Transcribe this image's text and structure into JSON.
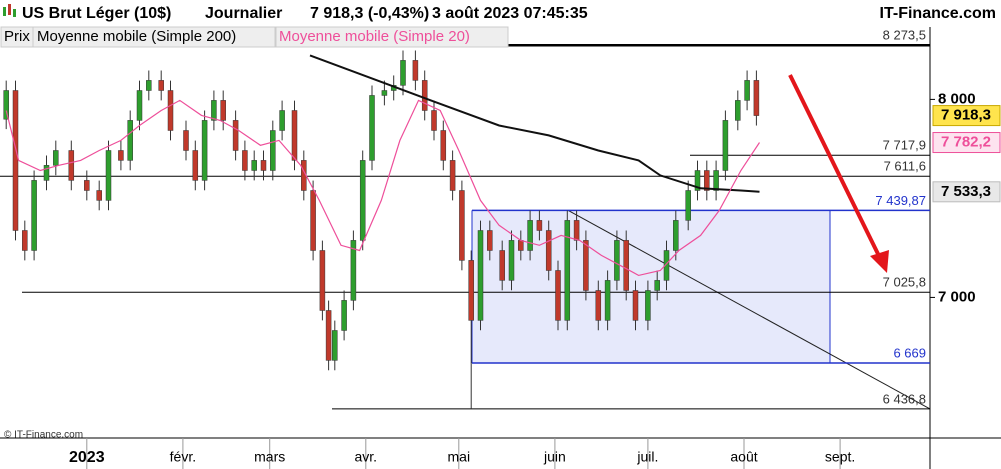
{
  "chart_data": {
    "type": "candlestick",
    "title": "US Brut Léger (10$)",
    "period": "Journalier",
    "quote": "7 918,3 (-0,43%)",
    "date": "3 août 2023 07:45:35",
    "source": "IT-Finance.com",
    "copyright": "© IT-Finance.com",
    "price_name": "Prix",
    "up_color": "#2e9e2e",
    "down_color": "#c0392b",
    "last_label": "7 918,3",
    "x": [
      -26,
      -23,
      -20,
      -17,
      -13,
      -10,
      -5,
      0,
      4,
      7,
      11,
      14,
      17,
      20,
      24,
      27,
      32,
      35,
      38,
      41,
      44,
      48,
      51,
      54,
      57,
      60,
      63,
      67,
      70,
      73,
      76,
      78,
      80,
      83,
      86,
      89,
      92,
      96,
      99,
      102,
      106,
      109,
      112,
      115,
      118,
      121,
      124,
      127,
      130,
      134,
      137,
      140,
      143,
      146,
      149,
      152,
      155,
      158,
      161,
      165,
      168,
      171,
      174,
      177,
      181,
      184,
      187,
      190,
      194,
      197,
      200,
      203,
      206,
      210,
      213,
      216
    ],
    "open": [
      7900,
      8045,
      7338,
      7237,
      7591,
      7667,
      7742,
      7591,
      7540,
      7490,
      7742,
      7692,
      7894,
      8045,
      8096,
      8045,
      7843,
      7742,
      7591,
      7894,
      7995,
      7894,
      7742,
      7641,
      7692,
      7641,
      7843,
      7944,
      7692,
      7540,
      7237,
      6934,
      6682,
      6833,
      6985,
      7288,
      7692,
      8020,
      8045,
      8071,
      8197,
      8096,
      7944,
      7843,
      7692,
      7540,
      7187,
      6884,
      7338,
      7237,
      7086,
      7288,
      7237,
      7389,
      7338,
      7136,
      6884,
      7389,
      7288,
      7035,
      6884,
      7086,
      7288,
      7035,
      6884,
      7035,
      7086,
      7237,
      7389,
      7540,
      7641,
      7540,
      7641,
      7894,
      7995,
      8096
    ],
    "high": [
      8095,
      8095,
      7388,
      7641,
      7717,
      7792,
      7792,
      7641,
      7590,
      7792,
      7792,
      7944,
      8095,
      8146,
      8146,
      8095,
      7893,
      7792,
      7944,
      8045,
      8045,
      7944,
      7792,
      7742,
      7742,
      7893,
      7994,
      7994,
      7742,
      7590,
      7287,
      6984,
      6883,
      7035,
      7338,
      7742,
      8070,
      8095,
      8121,
      8247,
      8247,
      8146,
      7994,
      7893,
      7742,
      7590,
      7237,
      7388,
      7388,
      7287,
      7338,
      7338,
      7439,
      7439,
      7388,
      7186,
      7439,
      7439,
      7338,
      7085,
      7136,
      7338,
      7338,
      7085,
      7085,
      7136,
      7287,
      7439,
      7590,
      7691,
      7691,
      7691,
      7944,
      8045,
      8146,
      8146
    ],
    "low": [
      7850,
      7288,
      7187,
      7187,
      7541,
      7617,
      7541,
      7490,
      7440,
      7440,
      7642,
      7642,
      7844,
      7995,
      7995,
      7793,
      7692,
      7541,
      7541,
      7844,
      7844,
      7692,
      7591,
      7591,
      7591,
      7591,
      7793,
      7642,
      7490,
      7187,
      6884,
      6632,
      6632,
      6783,
      6935,
      7238,
      7642,
      7970,
      7995,
      8021,
      8046,
      7894,
      7793,
      7642,
      7490,
      7137,
      6436.8,
      6834,
      7187,
      7036,
      7036,
      7187,
      7187,
      7288,
      7086,
      6834,
      6834,
      7238,
      6985,
      6834,
      6834,
      7036,
      6985,
      6834,
      6834,
      6985,
      7036,
      7187,
      7339,
      7490,
      7490,
      7490,
      7591,
      7844,
      7945,
      7868
    ],
    "close": [
      8045,
      7338,
      7237,
      7591,
      7667,
      7742,
      7591,
      7540,
      7490,
      7742,
      7692,
      7894,
      8045,
      8096,
      8045,
      7843,
      7742,
      7591,
      7894,
      7995,
      7894,
      7742,
      7641,
      7692,
      7641,
      7843,
      7944,
      7692,
      7540,
      7237,
      6934,
      6682,
      6833,
      6985,
      7288,
      7692,
      8020,
      8045,
      8071,
      8197,
      8096,
      7944,
      7843,
      7692,
      7540,
      7187,
      6884,
      7338,
      7237,
      7086,
      7288,
      7237,
      7389,
      7338,
      7136,
      6884,
      7389,
      7288,
      7035,
      6884,
      7086,
      7288,
      7035,
      6884,
      7035,
      7086,
      7237,
      7389,
      7540,
      7641,
      7540,
      7641,
      7894,
      7995,
      8096,
      7918.3
    ],
    "series": [
      {
        "name": "Moyenne mobile (Simple 200)",
        "color": "#111111",
        "last_label": "7 533,3",
        "x": [
          72,
          111,
          133,
          149,
          165,
          178,
          185,
          198,
          211,
          217
        ],
        "values": [
          8222,
          7995,
          7868,
          7818,
          7742,
          7692,
          7616,
          7551,
          7540,
          7533.3
        ]
      },
      {
        "name": "Moyenne mobile (Simple 20)",
        "color": "#ee4f9a",
        "last_label": "7 782,2",
        "x": [
          -26,
          -22,
          -15,
          -9,
          -2,
          4,
          11,
          17,
          24,
          30,
          37,
          43,
          49,
          56,
          62,
          69,
          75,
          82,
          88,
          95,
          101,
          107,
          114,
          120,
          127,
          133,
          140,
          146,
          153,
          159,
          166,
          172,
          178,
          185,
          191,
          198,
          204,
          211,
          217
        ],
        "values": [
          7944,
          7692,
          7641,
          7667,
          7692,
          7742,
          7793,
          7868,
          7944,
          7995,
          7919,
          7894,
          7843,
          7768,
          7793,
          7667,
          7490,
          7263,
          7237,
          7490,
          7793,
          7995,
          7944,
          7742,
          7490,
          7364,
          7288,
          7263,
          7313,
          7288,
          7212,
          7162,
          7111,
          7136,
          7237,
          7313,
          7439,
          7641,
          7782.2
        ]
      }
    ],
    "levels": [
      {
        "value": 8273.5,
        "label": "8 273,5",
        "color": "#000000"
      },
      {
        "value": 7717.9,
        "label": "7 717,9",
        "color": "#000000"
      },
      {
        "value": 7611.6,
        "label": "7 611,6",
        "color": "#000000"
      },
      {
        "value": 7439.87,
        "label": "7 439,87",
        "color": "#2233cc"
      },
      {
        "value": 7025.8,
        "label": "7 025,8",
        "color": "#000000"
      },
      {
        "value": 6669,
        "label": "6 669",
        "color": "#2233cc"
      },
      {
        "value": 6436.8,
        "label": "6 436,8",
        "color": "#000000"
      }
    ],
    "xlim": [
      -28,
      272
    ],
    "ylim": [
      6290,
      8300
    ],
    "xticks": [
      {
        "value": 0,
        "label": "2023"
      },
      {
        "value": 31,
        "label": "févr."
      },
      {
        "value": 59,
        "label": "mars"
      },
      {
        "value": 90,
        "label": "avr."
      },
      {
        "value": 120,
        "label": "mai"
      },
      {
        "value": 151,
        "label": "juin"
      },
      {
        "value": 181,
        "label": "juil."
      },
      {
        "value": 212,
        "label": "août"
      },
      {
        "value": 243,
        "label": "sept."
      }
    ],
    "yticks": [
      {
        "value": 7000,
        "label": "7 000"
      },
      {
        "value": 8000,
        "label": "8 000"
      }
    ]
  }
}
